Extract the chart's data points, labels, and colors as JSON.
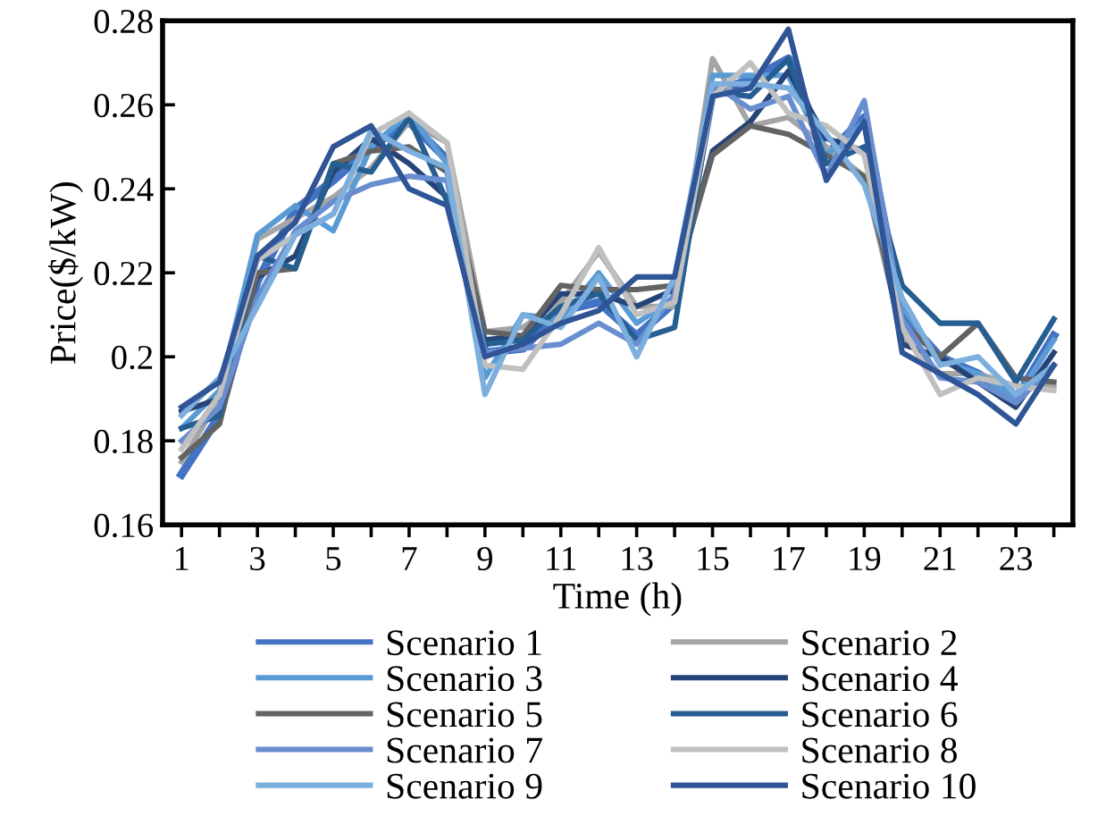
{
  "chart_data": {
    "type": "line",
    "xlabel": "Time (h)",
    "ylabel": "Price($/kW)",
    "x": [
      1,
      2,
      3,
      4,
      5,
      6,
      7,
      8,
      9,
      10,
      11,
      12,
      13,
      14,
      15,
      16,
      17,
      18,
      19,
      20,
      21,
      22,
      23,
      24
    ],
    "xlim": [
      0.5,
      24.5
    ],
    "xticks": [
      1,
      {
        "value": 2,
        "label": null
      },
      3,
      {
        "value": 4,
        "label": null
      },
      5,
      {
        "value": 6,
        "label": null
      },
      7,
      {
        "value": 8,
        "label": null
      },
      9,
      {
        "value": 10,
        "label": null
      },
      11,
      {
        "value": 12,
        "label": null
      },
      13,
      {
        "value": 14,
        "label": null
      },
      15,
      {
        "value": 16,
        "label": null
      },
      17,
      {
        "value": 18,
        "label": null
      },
      19,
      {
        "value": 20,
        "label": null
      },
      21,
      {
        "value": 22,
        "label": null
      },
      23,
      {
        "value": 24,
        "label": null
      }
    ],
    "ylim": [
      0.16,
      0.28
    ],
    "yticks": [
      0.16,
      0.18,
      0.2,
      0.22,
      0.24,
      0.26,
      0.28
    ],
    "grid": false,
    "legend": "bottom",
    "marker": "none",
    "line_style": "solid",
    "series": [
      {
        "name": "Scenario 1",
        "color": "#4472c4",
        "values": [
          0.172,
          0.186,
          0.218,
          0.235,
          0.242,
          0.25,
          0.256,
          0.247,
          0.201,
          0.202,
          0.211,
          0.213,
          0.205,
          0.213,
          0.263,
          0.266,
          0.271,
          0.248,
          0.257,
          0.21,
          0.2,
          0.196,
          0.19,
          0.205
        ]
      },
      {
        "name": "Scenario 2",
        "color": "#a5a5a5",
        "values": [
          0.175,
          0.19,
          0.228,
          0.233,
          0.238,
          0.245,
          0.256,
          0.251,
          0.206,
          0.207,
          0.213,
          0.225,
          0.212,
          0.212,
          0.271,
          0.255,
          0.257,
          0.25,
          0.243,
          0.205,
          0.196,
          0.196,
          0.193,
          0.193
        ]
      },
      {
        "name": "Scenario 3",
        "color": "#5b9bd5",
        "values": [
          0.183,
          0.192,
          0.229,
          0.236,
          0.23,
          0.25,
          0.258,
          0.246,
          0.195,
          0.21,
          0.209,
          0.22,
          0.208,
          0.214,
          0.267,
          0.267,
          0.267,
          0.248,
          0.256,
          0.212,
          0.199,
          0.196,
          0.19,
          0.204
        ]
      },
      {
        "name": "Scenario 4",
        "color": "#264478",
        "values": [
          0.187,
          0.19,
          0.219,
          0.224,
          0.244,
          0.252,
          0.246,
          0.238,
          0.204,
          0.205,
          0.215,
          0.215,
          0.212,
          0.216,
          0.249,
          0.256,
          0.268,
          0.252,
          0.249,
          0.203,
          0.2,
          0.194,
          0.188,
          0.201
        ]
      },
      {
        "name": "Scenario 5",
        "color": "#636363",
        "values": [
          0.176,
          0.184,
          0.22,
          0.221,
          0.246,
          0.249,
          0.25,
          0.244,
          0.206,
          0.205,
          0.217,
          0.216,
          0.216,
          0.217,
          0.248,
          0.255,
          0.253,
          0.248,
          0.243,
          0.208,
          0.2,
          0.208,
          0.195,
          0.194
        ]
      },
      {
        "name": "Scenario 6",
        "color": "#255e91",
        "values": [
          0.183,
          0.186,
          0.224,
          0.221,
          0.246,
          0.244,
          0.257,
          0.237,
          0.203,
          0.204,
          0.212,
          0.215,
          0.204,
          0.207,
          0.263,
          0.262,
          0.271,
          0.246,
          0.25,
          0.217,
          0.208,
          0.208,
          0.194,
          0.209
        ]
      },
      {
        "name": "Scenario 7",
        "color": "#698ed0",
        "values": [
          0.18,
          0.188,
          0.214,
          0.23,
          0.237,
          0.241,
          0.243,
          0.242,
          0.201,
          0.202,
          0.203,
          0.208,
          0.203,
          0.215,
          0.265,
          0.259,
          0.262,
          0.243,
          0.261,
          0.209,
          0.195,
          0.194,
          0.189,
          0.198
        ]
      },
      {
        "name": "Scenario 8",
        "color": "#c0c0c0",
        "values": [
          0.178,
          0.191,
          0.223,
          0.229,
          0.234,
          0.253,
          0.258,
          0.251,
          0.198,
          0.197,
          0.21,
          0.226,
          0.21,
          0.213,
          0.262,
          0.27,
          0.258,
          0.255,
          0.248,
          0.207,
          0.191,
          0.195,
          0.193,
          0.192
        ]
      },
      {
        "name": "Scenario 9",
        "color": "#7cafdd",
        "values": [
          0.186,
          0.195,
          0.212,
          0.229,
          0.234,
          0.254,
          0.249,
          0.245,
          0.191,
          0.21,
          0.207,
          0.219,
          0.2,
          0.219,
          0.265,
          0.265,
          0.264,
          0.253,
          0.241,
          0.214,
          0.198,
          0.2,
          0.191,
          0.198
        ]
      },
      {
        "name": "Scenario 10",
        "color": "#2f5597",
        "values": [
          0.188,
          0.194,
          0.224,
          0.232,
          0.25,
          0.255,
          0.24,
          0.236,
          0.2,
          0.203,
          0.208,
          0.211,
          0.219,
          0.219,
          0.262,
          0.264,
          0.278,
          0.242,
          0.256,
          0.201,
          0.196,
          0.191,
          0.184,
          0.198
        ]
      }
    ]
  }
}
